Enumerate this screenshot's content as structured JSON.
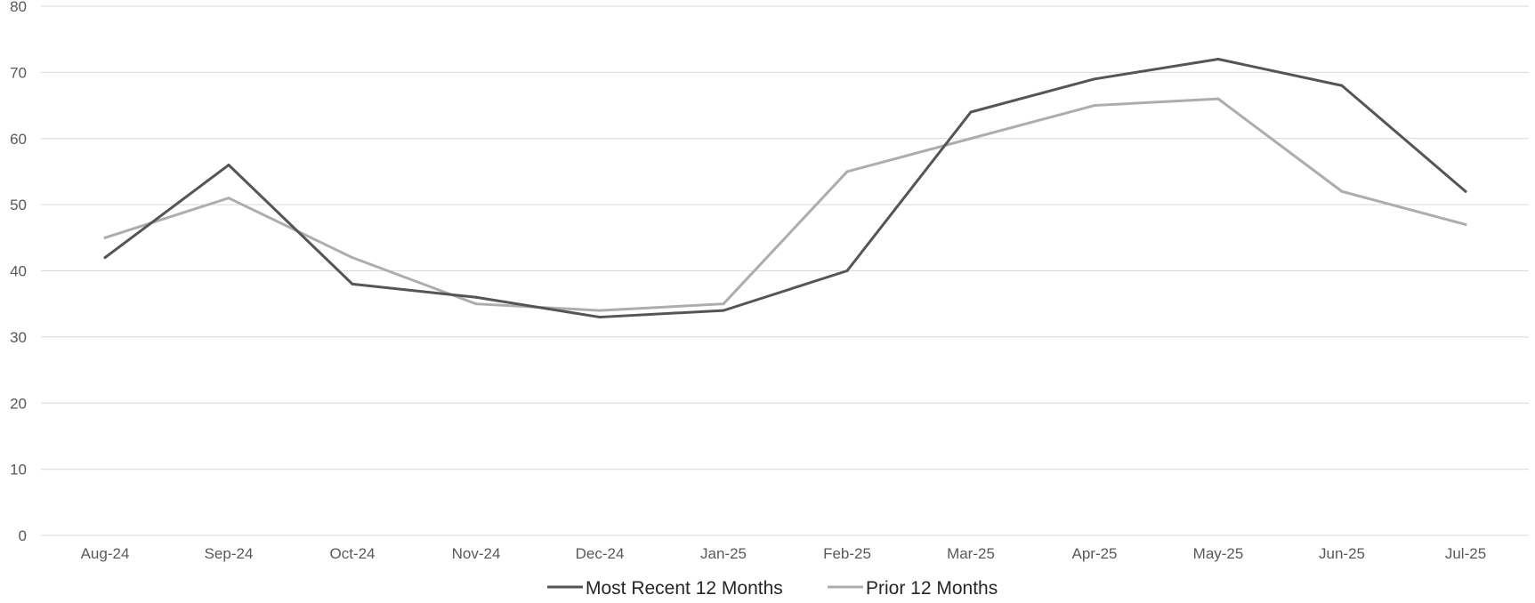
{
  "chart_data": {
    "type": "line",
    "title": "",
    "xlabel": "",
    "ylabel": "",
    "categories": [
      "Aug-24",
      "Sep-24",
      "Oct-24",
      "Nov-24",
      "Dec-24",
      "Jan-25",
      "Feb-25",
      "Mar-25",
      "Apr-25",
      "May-25",
      "Jun-25",
      "Jul-25"
    ],
    "ylim": [
      0,
      80
    ],
    "yticks": [
      0,
      10,
      20,
      30,
      40,
      50,
      60,
      70,
      80
    ],
    "grid": true,
    "legend_position": "bottom-center",
    "series": [
      {
        "name": "Most Recent 12 Months",
        "color": "#555555",
        "values": [
          42,
          56,
          38,
          36,
          33,
          34,
          40,
          64,
          69,
          72,
          68,
          52
        ]
      },
      {
        "name": "Prior 12 Months",
        "color": "#adadad",
        "values": [
          45,
          51,
          42,
          35,
          34,
          35,
          55,
          60,
          65,
          66,
          52,
          47
        ]
      }
    ],
    "colors": {
      "grid": "#d9d9d9",
      "tick_text": "#595959",
      "legend_text": "#262626"
    }
  }
}
